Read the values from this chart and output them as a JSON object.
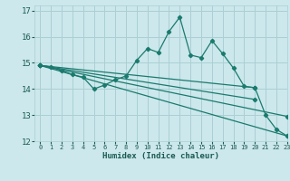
{
  "background_color": "#cce8ec",
  "grid_color": "#aacfd4",
  "line_color": "#1a7a6e",
  "xlabel": "Humidex (Indice chaleur)",
  "xlim": [
    -0.5,
    23
  ],
  "ylim": [
    12,
    17.2
  ],
  "xticks": [
    0,
    1,
    2,
    3,
    4,
    5,
    6,
    7,
    8,
    9,
    10,
    11,
    12,
    13,
    14,
    15,
    16,
    17,
    18,
    19,
    20,
    21,
    22,
    23
  ],
  "yticks": [
    12,
    13,
    14,
    15,
    16,
    17
  ],
  "lines": [
    {
      "x": [
        0,
        1,
        2,
        3,
        4,
        5,
        6,
        7,
        8,
        9,
        10,
        11,
        12,
        13,
        14,
        15,
        16,
        17,
        18,
        19,
        20,
        21,
        22,
        23
      ],
      "y": [
        14.9,
        14.85,
        14.7,
        14.55,
        14.45,
        14.0,
        14.15,
        14.35,
        14.5,
        15.1,
        15.55,
        15.4,
        16.2,
        16.75,
        15.3,
        15.2,
        15.85,
        15.35,
        14.8,
        14.1,
        14.05,
        13.0,
        12.45,
        12.2
      ],
      "has_markers": true
    },
    {
      "x": [
        0,
        20
      ],
      "y": [
        14.9,
        14.05
      ],
      "has_markers": true
    },
    {
      "x": [
        0,
        20
      ],
      "y": [
        14.9,
        13.6
      ],
      "has_markers": true
    },
    {
      "x": [
        0,
        23
      ],
      "y": [
        14.9,
        12.95
      ],
      "has_markers": true
    },
    {
      "x": [
        0,
        23
      ],
      "y": [
        14.9,
        12.2
      ],
      "has_markers": true
    }
  ]
}
